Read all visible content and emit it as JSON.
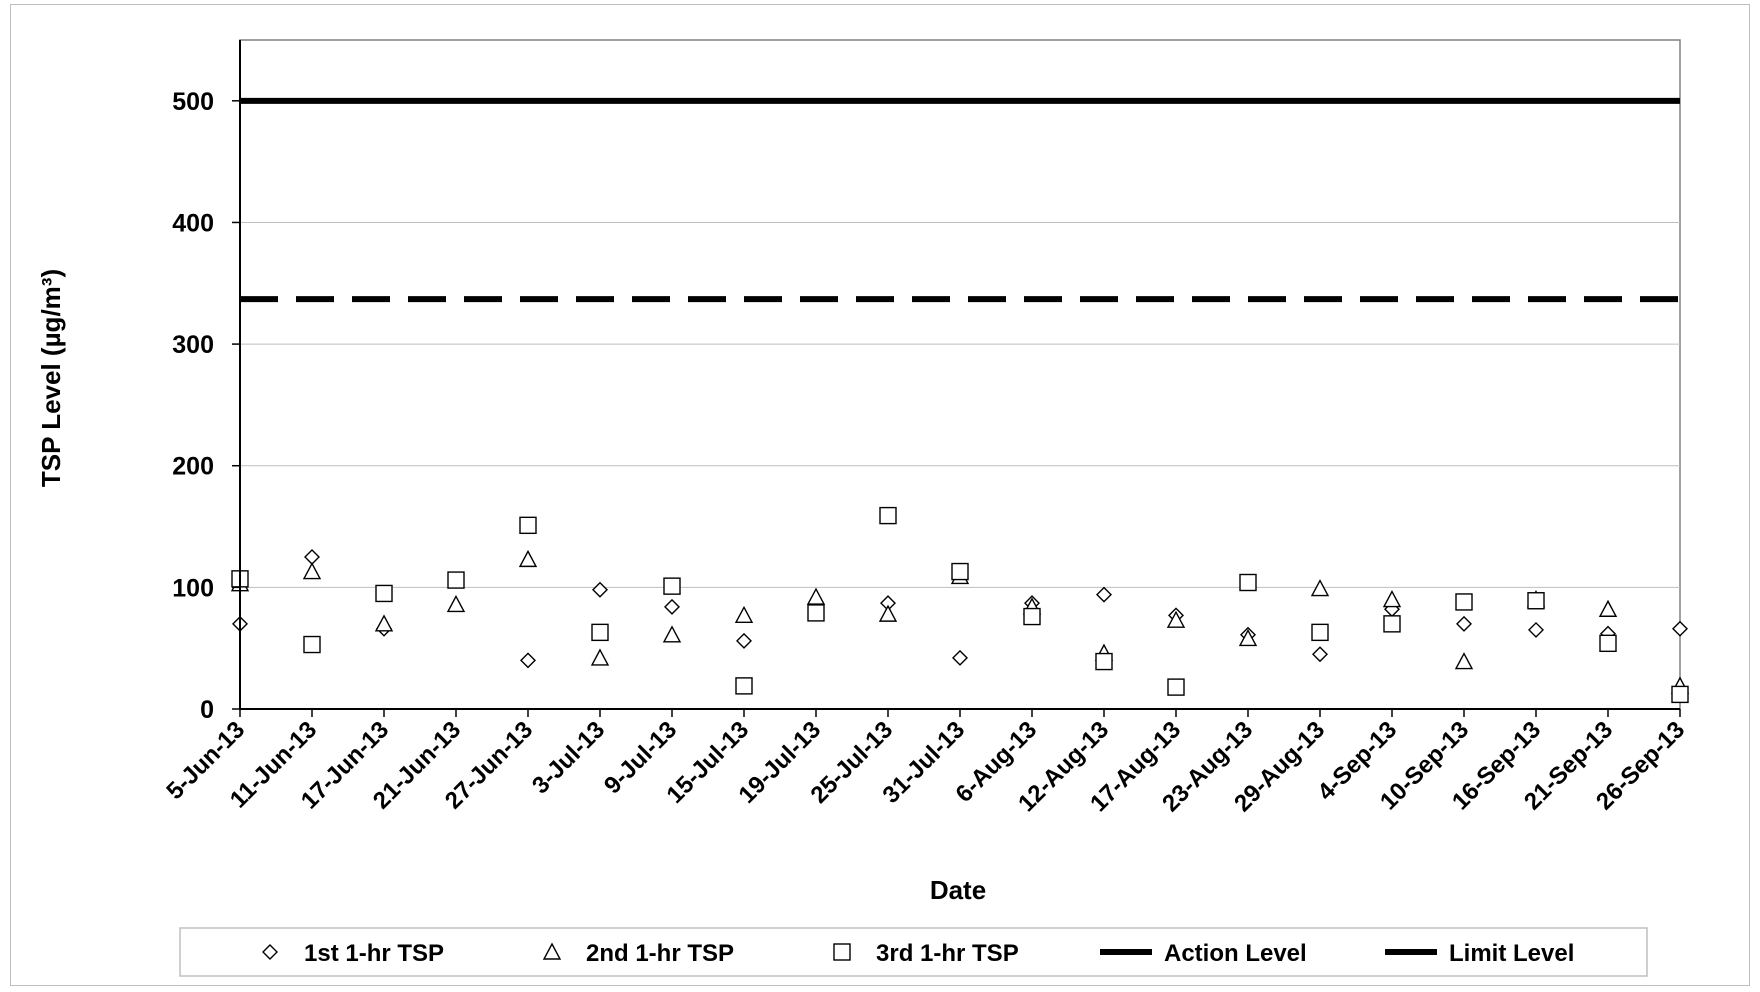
{
  "chart_data": {
    "type": "scatter",
    "title": "",
    "xlabel": "Date",
    "ylabel": "TSP Level  (µg/m³)",
    "ylim": [
      0,
      550
    ],
    "yticks": [
      0,
      100,
      200,
      300,
      400,
      500
    ],
    "grid": true,
    "legend_position": "bottom",
    "categories": [
      "5-Jun-13",
      "11-Jun-13",
      "17-Jun-13",
      "21-Jun-13",
      "27-Jun-13",
      "3-Jul-13",
      "9-Jul-13",
      "15-Jul-13",
      "19-Jul-13",
      "25-Jul-13",
      "31-Jul-13",
      "6-Aug-13",
      "12-Aug-13",
      "17-Aug-13",
      "23-Aug-13",
      "29-Aug-13",
      "4-Sep-13",
      "10-Sep-13",
      "16-Sep-13",
      "21-Sep-13",
      "26-Sep-13"
    ],
    "series": [
      {
        "name": "1st 1-hr TSP",
        "marker": "diamond",
        "values": [
          70,
          125,
          66,
          106,
          40,
          98,
          84,
          56,
          82,
          87,
          42,
          87,
          94,
          77,
          61,
          45,
          82,
          70,
          65,
          62,
          66
        ]
      },
      {
        "name": "2nd 1-hr TSP",
        "marker": "triangle",
        "values": [
          103,
          113,
          70,
          86,
          123,
          42,
          61,
          77,
          92,
          78,
          109,
          84,
          46,
          73,
          58,
          99,
          90,
          39,
          90,
          82,
          19
        ]
      },
      {
        "name": "3rd 1-hr TSP",
        "marker": "square",
        "values": [
          107,
          53,
          95,
          106,
          151,
          63,
          101,
          19,
          79,
          159,
          113,
          76,
          39,
          18,
          104,
          63,
          70,
          88,
          89,
          54,
          12
        ]
      }
    ],
    "reference_lines": [
      {
        "name": "Action Level",
        "value": 337,
        "style": "dashed",
        "color": "#000000"
      },
      {
        "name": "Limit Level",
        "value": 500,
        "style": "solid",
        "color": "#000000"
      }
    ]
  }
}
